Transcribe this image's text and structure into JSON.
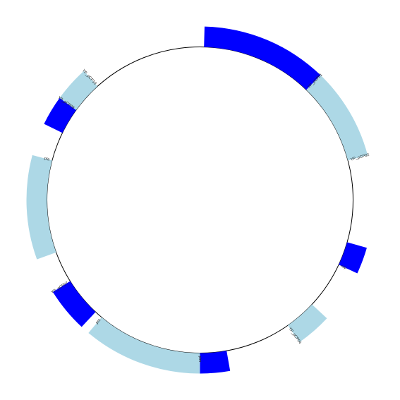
{
  "diagram": {
    "type": "circular-plasmid-map",
    "colors": {
      "dark": "#0000ff",
      "light": "#add8e6",
      "backbone": "#000000",
      "background": "#ffffff"
    },
    "features": [
      {
        "id": "yp-pcp01",
        "label": "YP_pCP01",
        "start_deg": 1.5,
        "end_deg": 44,
        "color": "dark"
      },
      {
        "id": "yp-pcp02",
        "label": "YP_pCP02",
        "start_deg": 44,
        "end_deg": 75,
        "color": "light"
      },
      {
        "id": "rop",
        "label": "rop",
        "start_deg": 106,
        "end_deg": 115,
        "color": "dark"
      },
      {
        "id": "yp-pcp04",
        "label": "YP_pCP04",
        "start_deg": 133,
        "end_deg": 145,
        "color": "light"
      },
      {
        "id": "pim",
        "label": "pim",
        "start_deg": 170,
        "end_deg": 180,
        "color": "dark"
      },
      {
        "id": "pst",
        "label": "pst",
        "start_deg": 180,
        "end_deg": 220,
        "color": "light"
      },
      {
        "id": "yp-pcp07",
        "label": "YP_pCP07",
        "start_deg": 223,
        "end_deg": 238,
        "color": "dark"
      },
      {
        "id": "pla",
        "label": "pla",
        "start_deg": 250,
        "end_deg": 285,
        "color": "light"
      },
      {
        "id": "yp-pcp09",
        "label": "YP_pCP09",
        "start_deg": 296,
        "end_deg": 306,
        "color": "dark"
      },
      {
        "id": "yp-pcp10",
        "label": "YP_pCP10",
        "start_deg": 306,
        "end_deg": 318,
        "color": "light"
      }
    ]
  }
}
